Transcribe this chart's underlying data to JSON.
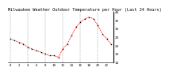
{
  "title": "Milwaukee Weather Outdoor Temperature per Hour (Last 24 Hours)",
  "hours": [
    0,
    1,
    2,
    3,
    4,
    5,
    6,
    7,
    8,
    9,
    10,
    11,
    12,
    13,
    14,
    15,
    16,
    17,
    18,
    19,
    20,
    21,
    22,
    23
  ],
  "temps": [
    28,
    27,
    26,
    25,
    23,
    22,
    21,
    20,
    19,
    18,
    18,
    17,
    22,
    25,
    30,
    35,
    38,
    40,
    41,
    40,
    36,
    31,
    28,
    25
  ],
  "line_color": "#ff0000",
  "marker_color": "#000000",
  "bg_color": "#ffffff",
  "grid_color": "#888888",
  "ylim": [
    14,
    44
  ],
  "ytick_values": [
    14,
    19,
    24,
    29,
    34,
    39,
    44
  ],
  "ytick_labels": [
    "14",
    "19",
    "24",
    "29",
    "34",
    "39",
    "44"
  ],
  "xtick_values": [
    0,
    2,
    4,
    6,
    8,
    10,
    12,
    14,
    16,
    18,
    20,
    22
  ],
  "xtick_labels": [
    "0",
    "2",
    "4",
    "6",
    "8",
    "10",
    "12",
    "14",
    "16",
    "18",
    "20",
    "22"
  ],
  "grid_hours": [
    0,
    4,
    8,
    12,
    16,
    20
  ],
  "title_fontsize": 3.8,
  "tick_fontsize": 3.0,
  "line_width": 0.7,
  "marker_size": 1.0
}
